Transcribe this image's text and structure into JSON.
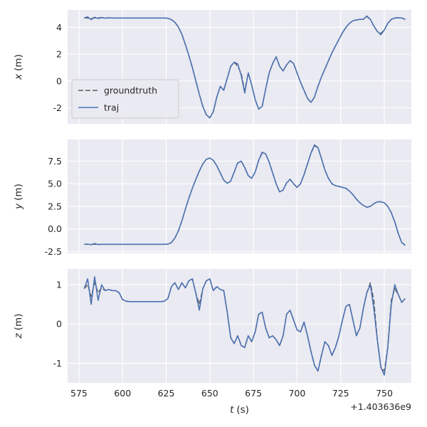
{
  "figure": {
    "background": "#ffffff"
  },
  "chart_data": {
    "type": "line",
    "title": "",
    "grid": true,
    "background": "#eaeaf2",
    "grid_color": "#ffffff",
    "text_color": "#262626",
    "xlabel_var": "t",
    "xlabel_unit": "(s)",
    "x_offset_label": "+1.403636e9",
    "xlim": [
      568.5,
      765.5
    ],
    "xticks": [
      575,
      600,
      625,
      650,
      675,
      700,
      725,
      750
    ],
    "xtick_labels": [
      "575",
      "600",
      "625",
      "650",
      "675",
      "700",
      "725",
      "750"
    ],
    "legend": {
      "position": "lower left of first subplot",
      "entries": [
        {
          "name": "groundtruth",
          "label": "groundtruth"
        },
        {
          "name": "traj",
          "label": "traj"
        }
      ]
    },
    "series_styles": {
      "groundtruth": {
        "color": "#5a5a5a",
        "dash": "7,3",
        "width": 1.5
      },
      "traj": {
        "color": "#4C72B0",
        "dash": null,
        "width": 1.6
      }
    },
    "x": [
      578,
      580,
      582,
      584,
      586,
      588,
      590,
      592,
      594,
      596,
      598,
      600,
      602,
      604,
      606,
      608,
      610,
      612,
      614,
      616,
      618,
      620,
      622,
      624,
      626,
      628,
      630,
      632,
      634,
      636,
      638,
      640,
      642,
      644,
      646,
      648,
      650,
      652,
      654,
      656,
      658,
      660,
      662,
      664,
      666,
      668,
      670,
      672,
      674,
      676,
      678,
      680,
      682,
      684,
      686,
      688,
      690,
      692,
      694,
      696,
      698,
      700,
      702,
      704,
      706,
      708,
      710,
      712,
      714,
      716,
      718,
      720,
      722,
      724,
      726,
      728,
      730,
      732,
      734,
      736,
      738,
      740,
      742,
      744,
      746,
      748,
      750,
      752,
      754,
      756,
      758,
      760,
      762
    ],
    "subplots": [
      {
        "ylabel_var": "x",
        "ylabel_unit": "(m)",
        "ylim": [
          -3.2,
          5.3
        ],
        "yticks": [
          -2,
          0,
          2,
          4
        ],
        "ytick_labels": [
          "-2",
          "0",
          "2",
          "4"
        ],
        "series": [
          {
            "name": "groundtruth",
            "values": [
              4.7,
              4.7,
              4.68,
              4.7,
              4.72,
              4.73,
              4.69,
              4.71,
              4.7,
              4.7,
              4.7,
              4.7,
              4.7,
              4.7,
              4.7,
              4.7,
              4.7,
              4.7,
              4.7,
              4.7,
              4.7,
              4.7,
              4.7,
              4.7,
              4.68,
              4.58,
              4.38,
              4.02,
              3.48,
              2.72,
              1.9,
              1.0,
              0.0,
              -1.0,
              -1.9,
              -2.52,
              -2.75,
              -2.3,
              -1.2,
              -0.4,
              -0.7,
              0.2,
              1.1,
              1.4,
              1.1,
              0.55,
              -0.75,
              0.6,
              -0.3,
              -1.4,
              -2.1,
              -1.9,
              -0.6,
              0.6,
              1.3,
              1.8,
              1.1,
              0.75,
              1.2,
              1.52,
              1.3,
              0.6,
              -0.1,
              -0.7,
              -1.3,
              -1.6,
              -1.2,
              -0.4,
              0.3,
              0.9,
              1.5,
              2.1,
              2.6,
              3.1,
              3.6,
              4.0,
              4.3,
              4.5,
              4.55,
              4.6,
              4.6,
              4.8,
              4.6,
              4.1,
              3.7,
              3.55,
              3.8,
              4.3,
              4.6,
              4.7,
              4.72,
              4.7,
              4.6
            ]
          },
          {
            "name": "traj",
            "values": [
              4.7,
              4.78,
              4.58,
              4.76,
              4.66,
              4.73,
              4.69,
              4.71,
              4.7,
              4.7,
              4.7,
              4.7,
              4.7,
              4.7,
              4.7,
              4.7,
              4.7,
              4.7,
              4.7,
              4.7,
              4.7,
              4.7,
              4.7,
              4.7,
              4.68,
              4.58,
              4.38,
              4.02,
              3.48,
              2.72,
              1.9,
              1.0,
              0.0,
              -1.0,
              -1.9,
              -2.52,
              -2.75,
              -2.3,
              -1.2,
              -0.4,
              -0.7,
              0.2,
              1.1,
              1.4,
              1.28,
              0.4,
              -0.9,
              0.6,
              -0.3,
              -1.4,
              -2.1,
              -1.9,
              -0.6,
              0.6,
              1.3,
              1.8,
              1.1,
              0.75,
              1.2,
              1.52,
              1.3,
              0.6,
              -0.1,
              -0.7,
              -1.3,
              -1.6,
              -1.2,
              -0.4,
              0.3,
              0.9,
              1.5,
              2.1,
              2.6,
              3.1,
              3.6,
              4.0,
              4.3,
              4.5,
              4.55,
              4.6,
              4.6,
              4.85,
              4.6,
              4.1,
              3.7,
              3.45,
              3.8,
              4.3,
              4.6,
              4.7,
              4.72,
              4.7,
              4.6
            ]
          }
        ]
      },
      {
        "ylabel_var": "y",
        "ylabel_unit": "(m)",
        "ylim": [
          -2.7,
          9.9
        ],
        "yticks": [
          -2.5,
          0.0,
          2.5,
          5.0,
          7.5
        ],
        "ytick_labels": [
          "-2.5",
          "0.0",
          "2.5",
          "5.0",
          "7.5"
        ],
        "series": [
          {
            "name": "groundtruth",
            "values": [
              -1.7,
              -1.7,
              -1.7,
              -1.7,
              -1.7,
              -1.7,
              -1.7,
              -1.7,
              -1.7,
              -1.7,
              -1.7,
              -1.7,
              -1.7,
              -1.7,
              -1.7,
              -1.7,
              -1.7,
              -1.7,
              -1.7,
              -1.7,
              -1.7,
              -1.7,
              -1.7,
              -1.7,
              -1.68,
              -1.5,
              -1.0,
              -0.2,
              0.9,
              2.2,
              3.4,
              4.5,
              5.5,
              6.4,
              7.2,
              7.7,
              7.85,
              7.6,
              7.0,
              6.2,
              5.4,
              5.05,
              5.3,
              6.3,
              7.3,
              7.5,
              6.8,
              5.9,
              5.6,
              6.3,
              7.6,
              8.4,
              8.3,
              7.4,
              6.2,
              5.0,
              4.1,
              4.3,
              5.1,
              5.5,
              5.0,
              4.6,
              5.0,
              6.0,
              7.2,
              8.4,
              9.2,
              9.0,
              7.8,
              6.5,
              5.6,
              5.0,
              4.8,
              4.7,
              4.6,
              4.5,
              4.2,
              3.8,
              3.3,
              2.9,
              2.6,
              2.4,
              2.5,
              2.8,
              3.0,
              3.0,
              2.9,
              2.5,
              1.8,
              0.8,
              -0.5,
              -1.5,
              -1.8
            ]
          },
          {
            "name": "traj",
            "values": [
              -1.7,
              -1.68,
              -1.75,
              -1.62,
              -1.72,
              -1.7,
              -1.7,
              -1.7,
              -1.7,
              -1.7,
              -1.7,
              -1.7,
              -1.7,
              -1.7,
              -1.7,
              -1.7,
              -1.7,
              -1.7,
              -1.7,
              -1.7,
              -1.7,
              -1.7,
              -1.7,
              -1.7,
              -1.68,
              -1.5,
              -1.0,
              -0.2,
              0.9,
              2.2,
              3.4,
              4.5,
              5.5,
              6.4,
              7.2,
              7.7,
              7.85,
              7.6,
              7.0,
              6.2,
              5.4,
              5.05,
              5.3,
              6.3,
              7.3,
              7.5,
              6.8,
              5.9,
              5.6,
              6.3,
              7.6,
              8.5,
              8.3,
              7.4,
              6.2,
              5.0,
              4.1,
              4.3,
              5.1,
              5.5,
              5.0,
              4.6,
              5.0,
              6.0,
              7.2,
              8.4,
              9.3,
              9.0,
              7.8,
              6.5,
              5.6,
              5.0,
              4.8,
              4.7,
              4.6,
              4.5,
              4.2,
              3.8,
              3.3,
              2.9,
              2.6,
              2.4,
              2.5,
              2.8,
              3.0,
              3.0,
              2.9,
              2.5,
              1.8,
              0.8,
              -0.5,
              -1.5,
              -1.8
            ]
          }
        ]
      },
      {
        "ylabel_var": "z",
        "ylabel_unit": "(m)",
        "ylim": [
          -1.5,
          1.4
        ],
        "yticks": [
          -1,
          0,
          1
        ],
        "ytick_labels": [
          "-1",
          "0",
          "1"
        ],
        "series": [
          {
            "name": "groundtruth",
            "values": [
              0.9,
              1.0,
              0.7,
              1.05,
              0.8,
              0.92,
              0.85,
              0.88,
              0.85,
              0.85,
              0.8,
              0.62,
              0.58,
              0.57,
              0.57,
              0.57,
              0.57,
              0.57,
              0.57,
              0.57,
              0.57,
              0.57,
              0.57,
              0.58,
              0.65,
              0.95,
              1.05,
              0.88,
              1.05,
              0.92,
              1.1,
              1.15,
              0.78,
              0.5,
              0.9,
              1.1,
              1.15,
              0.85,
              0.95,
              0.88,
              0.85,
              0.3,
              -0.35,
              -0.5,
              -0.3,
              -0.55,
              -0.6,
              -0.3,
              -0.45,
              -0.2,
              0.25,
              0.3,
              -0.1,
              -0.35,
              -0.3,
              -0.4,
              -0.55,
              -0.3,
              0.25,
              0.35,
              0.1,
              -0.15,
              -0.2,
              0.05,
              -0.3,
              -0.7,
              -1.05,
              -1.2,
              -0.8,
              -0.45,
              -0.55,
              -0.8,
              -0.6,
              -0.3,
              0.1,
              0.45,
              0.5,
              0.1,
              -0.3,
              -0.1,
              0.4,
              0.8,
              1.05,
              0.6,
              -0.4,
              -1.1,
              -1.2,
              -0.6,
              0.6,
              0.9,
              0.75,
              0.55,
              0.65
            ]
          },
          {
            "name": "traj",
            "values": [
              0.9,
              1.15,
              0.5,
              1.2,
              0.6,
              1.0,
              0.85,
              0.88,
              0.85,
              0.85,
              0.8,
              0.62,
              0.58,
              0.57,
              0.57,
              0.57,
              0.57,
              0.57,
              0.57,
              0.57,
              0.57,
              0.57,
              0.57,
              0.58,
              0.65,
              0.95,
              1.05,
              0.88,
              1.05,
              0.92,
              1.1,
              1.15,
              0.78,
              0.35,
              0.9,
              1.1,
              1.15,
              0.85,
              0.95,
              0.88,
              0.85,
              0.3,
              -0.35,
              -0.5,
              -0.3,
              -0.55,
              -0.6,
              -0.3,
              -0.45,
              -0.2,
              0.25,
              0.3,
              -0.1,
              -0.35,
              -0.3,
              -0.4,
              -0.55,
              -0.3,
              0.25,
              0.35,
              0.1,
              -0.15,
              -0.2,
              0.05,
              -0.3,
              -0.7,
              -1.05,
              -1.2,
              -0.8,
              -0.45,
              -0.55,
              -0.8,
              -0.6,
              -0.3,
              0.1,
              0.45,
              0.5,
              0.1,
              -0.3,
              -0.1,
              0.4,
              0.8,
              1.0,
              0.4,
              -0.4,
              -1.1,
              -1.3,
              -0.6,
              0.5,
              1.0,
              0.75,
              0.55,
              0.65
            ]
          }
        ]
      }
    ]
  }
}
